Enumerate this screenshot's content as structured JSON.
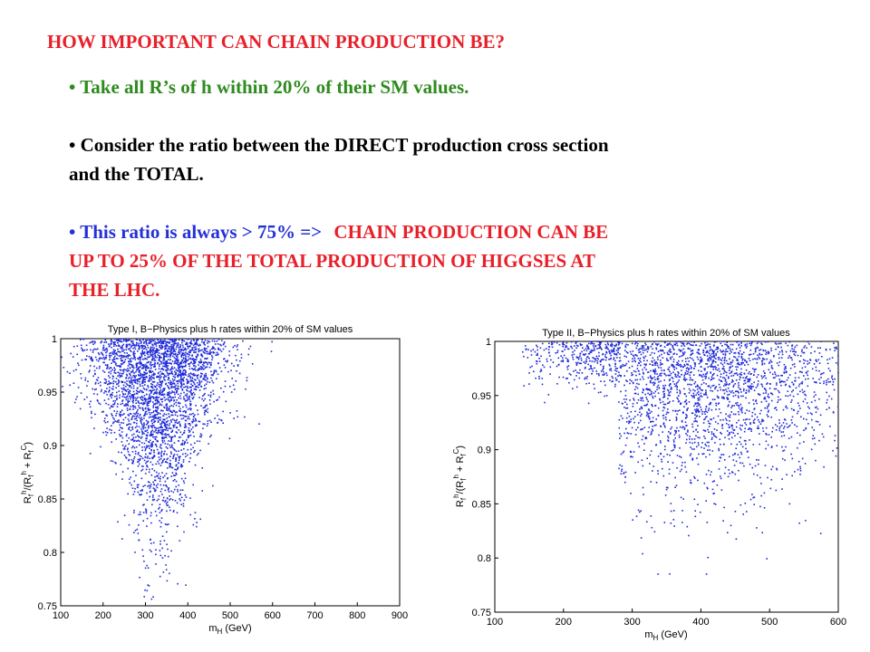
{
  "slide": {
    "title": "HOW IMPORTANT CAN CHAIN PRODUCTION BE?",
    "bullet1": "• Take all R’s of h within 20% of their SM values.",
    "bullet2_line1": "• Consider the ratio between the DIRECT production cross section",
    "bullet2_line2": "and the TOTAL.",
    "bullet3_prefix": "• This ratio is always > 75% =>",
    "bullet3_red1": "CHAIN PRODUCTION CAN BE",
    "bullet3_red2": "UP TO 25% OF THE TOTAL PRODUCTION OF HIGGSES AT",
    "bullet3_red3": "THE LHC."
  },
  "colors": {
    "title": "#e8202a",
    "bullet1": "#2e8b1e",
    "bullet2": "#000000",
    "bullet3_prefix": "#2431d6",
    "bullet3_red": "#e8202a",
    "points": "#1f2bd8"
  },
  "chart_data": [
    {
      "type": "scatter",
      "title": "Type I, B−Physics plus h rates within 20% of SM values",
      "xlabel": "m_H (GeV)",
      "ylabel": "R_f^h/(R_f^h + R_f^C)",
      "xlim": [
        100,
        900
      ],
      "ylim": [
        0.75,
        1.0
      ],
      "xticks": [
        "100",
        "200",
        "300",
        "400",
        "500",
        "600",
        "700",
        "800",
        "900"
      ],
      "yticks": [
        "0.75",
        "0.8",
        "0.85",
        "0.9",
        "0.95",
        "1"
      ],
      "grid": false,
      "series_summary": {
        "x_range": [
          100,
          600
        ],
        "y_range": [
          0.755,
          1.0
        ],
        "density_peak_x": [
          280,
          380
        ],
        "density_peak_y": [
          0.92,
          1.0
        ],
        "approx_points": 3000
      }
    },
    {
      "type": "scatter",
      "title": "Type II, B−Physics plus h rates within 20% of SM values",
      "xlabel": "m_H (GeV)",
      "ylabel": "R_f^h/(R_f^h + R_f^C)",
      "xlim": [
        100,
        600
      ],
      "ylim": [
        0.75,
        1.0
      ],
      "xticks": [
        "100",
        "200",
        "300",
        "400",
        "500",
        "600"
      ],
      "yticks": [
        "0.75",
        "0.8",
        "0.85",
        "0.9",
        "0.95",
        "1"
      ],
      "grid": false,
      "series_summary": {
        "x_range": [
          140,
          600
        ],
        "y_range": [
          0.785,
          1.0
        ],
        "density_peak_x": [
          320,
          500
        ],
        "density_peak_y": [
          0.95,
          1.0
        ],
        "approx_points": 2500
      }
    }
  ]
}
